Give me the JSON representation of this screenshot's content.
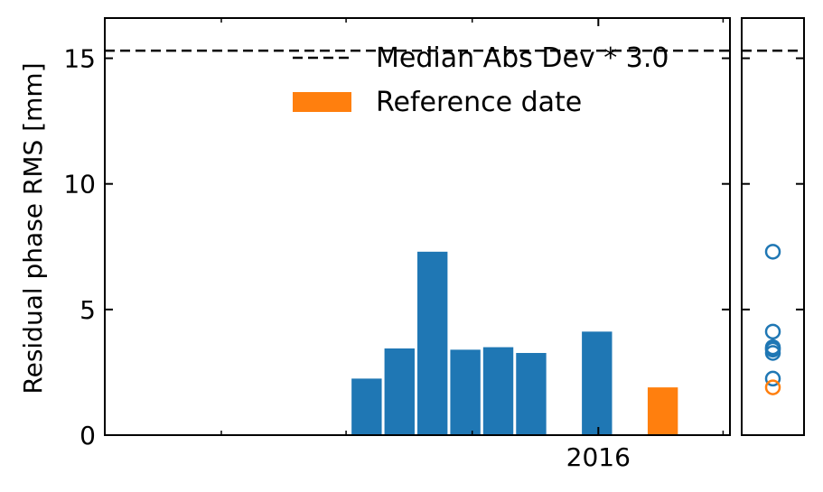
{
  "chart_data": [
    {
      "type": "bar",
      "ylabel": "Residual phase RMS [mm]",
      "ylim": [
        0,
        16.6
      ],
      "xlim": [
        "2015-01-06",
        "2016-04-06"
      ],
      "yticks": [
        0,
        5,
        10,
        15
      ],
      "xtick_labels": [
        {
          "date": "2016-01-01",
          "label": "2016"
        }
      ],
      "bar_width_days": 22,
      "threshold": {
        "value": 15.3,
        "label": "Median Abs Dev * 3.0",
        "style": "dashed"
      },
      "reference_legend_label": "Reference date",
      "legend_location": "upper right",
      "colors": {
        "normal": "#1f77b4",
        "reference": "#ff7f0e",
        "threshold": "#000000"
      },
      "series": [
        {
          "values": [
            {
              "date": "2015-07-16",
              "rms": 2.25
            },
            {
              "date": "2015-08-09",
              "rms": 3.45
            },
            {
              "date": "2015-09-02",
              "rms": 7.3
            },
            {
              "date": "2015-09-26",
              "rms": 3.4
            },
            {
              "date": "2015-10-20",
              "rms": 3.5
            },
            {
              "date": "2015-11-13",
              "rms": 3.27
            },
            {
              "date": "2015-12-31",
              "rms": 4.12
            }
          ]
        },
        {
          "reference": true,
          "values": [
            {
              "date": "2016-02-17",
              "rms": 1.9
            }
          ]
        }
      ]
    },
    {
      "type": "scatter",
      "ylim": [
        0,
        16.6
      ],
      "marker": "open-circle",
      "threshold_value": 15.3,
      "points": [
        {
          "rms": 7.3,
          "reference": false
        },
        {
          "rms": 4.12,
          "reference": false
        },
        {
          "rms": 3.5,
          "reference": false
        },
        {
          "rms": 3.45,
          "reference": false
        },
        {
          "rms": 3.4,
          "reference": false
        },
        {
          "rms": 3.27,
          "reference": false
        },
        {
          "rms": 2.25,
          "reference": false
        },
        {
          "rms": 1.9,
          "reference": true
        }
      ]
    }
  ]
}
